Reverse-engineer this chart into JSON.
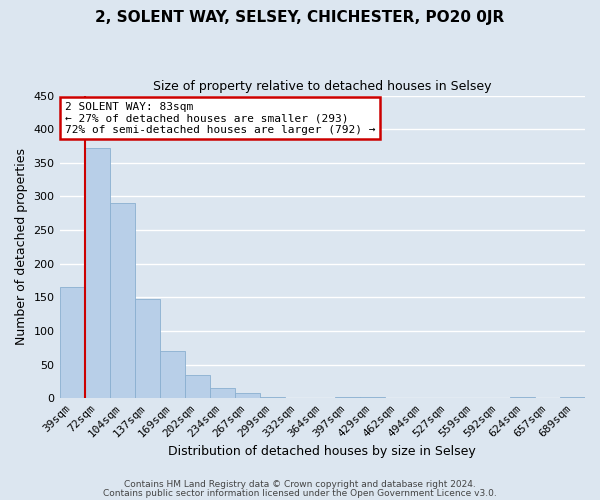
{
  "title": "2, SOLENT WAY, SELSEY, CHICHESTER, PO20 0JR",
  "subtitle": "Size of property relative to detached houses in Selsey",
  "xlabel": "Distribution of detached houses by size in Selsey",
  "ylabel": "Number of detached properties",
  "bar_labels": [
    "39sqm",
    "72sqm",
    "104sqm",
    "137sqm",
    "169sqm",
    "202sqm",
    "234sqm",
    "267sqm",
    "299sqm",
    "332sqm",
    "364sqm",
    "397sqm",
    "429sqm",
    "462sqm",
    "494sqm",
    "527sqm",
    "559sqm",
    "592sqm",
    "624sqm",
    "657sqm",
    "689sqm"
  ],
  "bar_values": [
    165,
    372,
    290,
    147,
    70,
    35,
    15,
    8,
    2,
    0,
    0,
    2,
    2,
    0,
    0,
    0,
    0,
    0,
    2,
    0,
    2
  ],
  "bar_color": "#b8cfe8",
  "bar_edge_color": "#8aafd0",
  "bg_color": "#dce6f0",
  "plot_bg_color": "#dce6f0",
  "grid_color": "#ffffff",
  "vline_color": "#cc0000",
  "vline_x_index": 1,
  "annotation_title": "2 SOLENT WAY: 83sqm",
  "annotation_line1": "← 27% of detached houses are smaller (293)",
  "annotation_line2": "72% of semi-detached houses are larger (792) →",
  "annotation_box_color": "#ffffff",
  "annotation_box_edge": "#cc0000",
  "ylim": [
    0,
    450
  ],
  "yticks": [
    0,
    50,
    100,
    150,
    200,
    250,
    300,
    350,
    400,
    450
  ],
  "footer1": "Contains HM Land Registry data © Crown copyright and database right 2024.",
  "footer2": "Contains public sector information licensed under the Open Government Licence v3.0.",
  "title_fontsize": 11,
  "subtitle_fontsize": 9,
  "xlabel_fontsize": 9,
  "ylabel_fontsize": 9,
  "tick_fontsize": 8,
  "ann_fontsize": 8,
  "footer_fontsize": 6.5
}
